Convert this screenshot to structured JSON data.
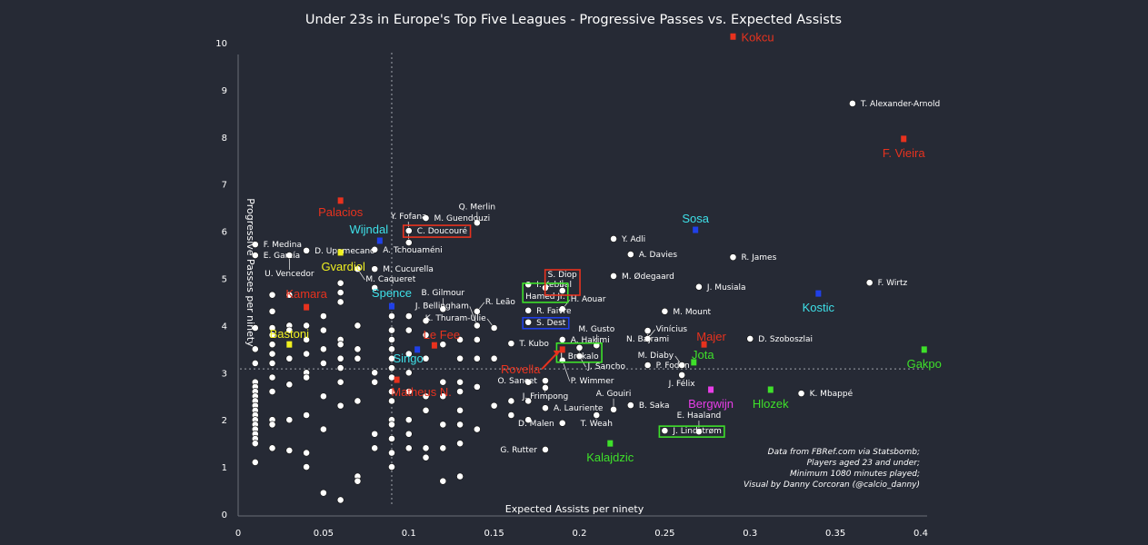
{
  "chart_data": {
    "type": "scatter",
    "title": "Under 23s in Europe's Top Five Leagues - Progressive Passes vs. Expected Assists",
    "xlabel": "Expected Assists per ninety",
    "ylabel": "Progressive Passes per ninety",
    "xlim": [
      0,
      0.4
    ],
    "ylim": [
      0,
      10
    ],
    "xticks": [
      "0",
      "0.05",
      "0.1",
      "0.15",
      "0.2",
      "0.25",
      "0.3",
      "0.35",
      "0.4"
    ],
    "yticks": [
      "0",
      "1",
      "2",
      "3",
      "4",
      "5",
      "6",
      "7",
      "8",
      "9",
      "10"
    ],
    "grid": false,
    "reference_lines": {
      "x": 0.09,
      "y": 3.08
    },
    "point_color": "#ffffff",
    "named_players": [
      {
        "name": "T. Alexander-Arnold",
        "x": 0.36,
        "y": 8.71
      },
      {
        "name": "F. Medina",
        "x": 0.01,
        "y": 5.72
      },
      {
        "name": "E. García",
        "x": 0.01,
        "y": 5.49
      },
      {
        "name": "U. Vencedor",
        "x": 0.03,
        "y": 5.49
      },
      {
        "name": "D. Upamecano",
        "x": 0.04,
        "y": 5.59
      },
      {
        "name": "A. Tchouaméni",
        "x": 0.08,
        "y": 5.61
      },
      {
        "name": "M. Caqueret",
        "x": 0.07,
        "y": 5.2
      },
      {
        "name": "M. Cucurella",
        "x": 0.08,
        "y": 5.2
      },
      {
        "name": "M. Guendouzi",
        "x": 0.11,
        "y": 6.28
      },
      {
        "name": "C. Doucouré",
        "x": 0.1,
        "y": 6.01,
        "box": "#e8321e"
      },
      {
        "name": "Y. Fofana",
        "x": 0.1,
        "y": 5.76
      },
      {
        "name": "Q. Merlin",
        "x": 0.14,
        "y": 6.18
      },
      {
        "name": "Y. Adli",
        "x": 0.22,
        "y": 5.84
      },
      {
        "name": "A. Davies",
        "x": 0.23,
        "y": 5.51
      },
      {
        "name": "R. James",
        "x": 0.29,
        "y": 5.45
      },
      {
        "name": "F. Wirtz",
        "x": 0.37,
        "y": 4.91
      },
      {
        "name": "M. Ødegaard",
        "x": 0.22,
        "y": 5.05
      },
      {
        "name": "J. Musiala",
        "x": 0.27,
        "y": 4.82
      },
      {
        "name": "I. Kebbal",
        "x": 0.17,
        "y": 4.87
      },
      {
        "name": "Hamed Jr.",
        "x": 0.18,
        "y": 4.8,
        "box": "#3ee02a"
      },
      {
        "name": "S. Diop",
        "x": 0.19,
        "y": 4.74,
        "box": "#e8321e"
      },
      {
        "name": "R. Faivre",
        "x": 0.17,
        "y": 4.32
      },
      {
        "name": "H. Aouar",
        "x": 0.19,
        "y": 4.35
      },
      {
        "name": "S. Dest",
        "x": 0.17,
        "y": 4.07,
        "box": "#2040e8"
      },
      {
        "name": "A. Hakimi",
        "x": 0.19,
        "y": 3.7
      },
      {
        "name": "M. Mount",
        "x": 0.25,
        "y": 4.3
      },
      {
        "name": "N. Bajrami",
        "x": 0.24,
        "y": 3.89
      },
      {
        "name": "Vinícius",
        "x": 0.24,
        "y": 3.72
      },
      {
        "name": "J. Brekalo",
        "x": 0.2,
        "y": 3.53,
        "box": "#3ee02a"
      },
      {
        "name": "M. Gusto",
        "x": 0.21,
        "y": 3.58
      },
      {
        "name": "J. Sancho",
        "x": 0.2,
        "y": 3.35
      },
      {
        "name": "T. Kubo",
        "x": 0.16,
        "y": 3.62
      },
      {
        "name": "K. Thuram-Ulie",
        "x": 0.15,
        "y": 3.95
      },
      {
        "name": "J. Bellingham",
        "x": 0.14,
        "y": 4.0
      },
      {
        "name": "R. Leão",
        "x": 0.14,
        "y": 4.3
      },
      {
        "name": "B. Gilmour",
        "x": 0.12,
        "y": 4.35
      },
      {
        "name": "D. Szoboszlai",
        "x": 0.3,
        "y": 3.72
      },
      {
        "name": "P. Foden",
        "x": 0.24,
        "y": 3.16
      },
      {
        "name": "M. Diaby",
        "x": 0.26,
        "y": 3.16
      },
      {
        "name": "J. Félix",
        "x": 0.26,
        "y": 2.95
      },
      {
        "name": "K. Mbappé",
        "x": 0.33,
        "y": 2.56
      },
      {
        "name": "P. Wimmer",
        "x": 0.19,
        "y": 3.26
      },
      {
        "name": "O. Sancet",
        "x": 0.18,
        "y": 2.83
      },
      {
        "name": "J. Frimpong",
        "x": 0.18,
        "y": 2.68
      },
      {
        "name": "A. Lauriente",
        "x": 0.18,
        "y": 2.25
      },
      {
        "name": "B. Saka",
        "x": 0.23,
        "y": 2.31
      },
      {
        "name": "A. Gouiri",
        "x": 0.22,
        "y": 2.22
      },
      {
        "name": "T. Weah",
        "x": 0.21,
        "y": 2.1
      },
      {
        "name": "D. Malen",
        "x": 0.19,
        "y": 1.93
      },
      {
        "name": "G. Rutter",
        "x": 0.18,
        "y": 1.37
      },
      {
        "name": "J. Lindstrøm",
        "x": 0.25,
        "y": 1.77,
        "box": "#3ee02a"
      },
      {
        "name": "E. Haaland",
        "x": 0.27,
        "y": 1.75
      }
    ],
    "highlighted_players": [
      {
        "name": "Kokcu",
        "x": 0.29,
        "y": 10.13,
        "color": "#e8321e"
      },
      {
        "name": "F. Vieira",
        "x": 0.39,
        "y": 7.96,
        "color": "#e8321e"
      },
      {
        "name": "Palacios",
        "x": 0.06,
        "y": 6.65,
        "color": "#e8321e"
      },
      {
        "name": "Wijndal",
        "x": 0.083,
        "y": 5.8,
        "color": "#2040e8",
        "label_color": "#3ee0e8"
      },
      {
        "name": "Gvardiol",
        "x": 0.06,
        "y": 5.55,
        "color": "#f0f020"
      },
      {
        "name": "Kamara",
        "x": 0.04,
        "y": 4.39,
        "color": "#e8321e"
      },
      {
        "name": "Spence",
        "x": 0.09,
        "y": 4.41,
        "color": "#2040e8",
        "label_color": "#3ee0e8"
      },
      {
        "name": "Bastoni",
        "x": 0.03,
        "y": 3.6,
        "color": "#f0f020"
      },
      {
        "name": "Le Fee",
        "x": 0.115,
        "y": 3.58,
        "color": "#e8321e"
      },
      {
        "name": "Singo",
        "x": 0.105,
        "y": 3.49,
        "color": "#2040e8",
        "label_color": "#3ee0e8"
      },
      {
        "name": "Matheus N.",
        "x": 0.093,
        "y": 2.85,
        "color": "#e8321e"
      },
      {
        "name": "Rovella",
        "x": 0.19,
        "y": 3.49,
        "color": "#e8321e"
      },
      {
        "name": "Sosa",
        "x": 0.268,
        "y": 6.03,
        "color": "#2040e8",
        "label_color": "#3ee0e8"
      },
      {
        "name": "Kostic",
        "x": 0.34,
        "y": 4.68,
        "color": "#2040e8",
        "label_color": "#3ee0e8"
      },
      {
        "name": "Majer",
        "x": 0.273,
        "y": 3.6,
        "color": "#e8321e"
      },
      {
        "name": "Jota",
        "x": 0.267,
        "y": 3.22,
        "color": "#3ee02a"
      },
      {
        "name": "Gakpo",
        "x": 0.402,
        "y": 3.49,
        "color": "#3ee02a"
      },
      {
        "name": "Bergwijn",
        "x": 0.277,
        "y": 2.64,
        "color": "#e83ee8"
      },
      {
        "name": "Hlozek",
        "x": 0.312,
        "y": 2.64,
        "color": "#3ee02a"
      },
      {
        "name": "Kalajdzic",
        "x": 0.218,
        "y": 1.5,
        "color": "#3ee02a"
      }
    ],
    "other_players": [
      {
        "x": 0.01,
        "ys": [
          3.95,
          3.5,
          3.2,
          2.8,
          2.7,
          2.6,
          2.5,
          2.4,
          2.3,
          2.2,
          2.1,
          2.0,
          1.9,
          1.8,
          1.7,
          1.6,
          1.5,
          1.1
        ]
      },
      {
        "x": 0.02,
        "ys": [
          4.65,
          4.3,
          3.95,
          3.8,
          3.6,
          3.4,
          3.2,
          2.9,
          2.6,
          2.0,
          1.9,
          1.4
        ]
      },
      {
        "x": 0.03,
        "ys": [
          4.65,
          4.0,
          3.9,
          3.3,
          2.75,
          2.0,
          1.35
        ]
      },
      {
        "x": 0.04,
        "ys": [
          4.0,
          3.7,
          3.4,
          3.0,
          2.9,
          2.1,
          1.3,
          1.0
        ]
      },
      {
        "x": 0.05,
        "ys": [
          4.2,
          3.9,
          3.5,
          3.2,
          2.5,
          1.8,
          0.45
        ]
      },
      {
        "x": 0.06,
        "ys": [
          4.9,
          4.7,
          4.5,
          3.7,
          3.6,
          3.3,
          3.1,
          2.8,
          2.3,
          0.3
        ]
      },
      {
        "x": 0.07,
        "ys": [
          4.0,
          3.5,
          3.3,
          2.4,
          0.8,
          0.7
        ]
      },
      {
        "x": 0.08,
        "ys": [
          4.8,
          3.0,
          2.8,
          1.7,
          1.4
        ]
      },
      {
        "x": 0.09,
        "ys": [
          4.2,
          3.9,
          3.7,
          3.5,
          3.3,
          3.1,
          2.9,
          2.6,
          2.4,
          2.0,
          1.9,
          1.6,
          1.3,
          1.0
        ]
      },
      {
        "x": 0.1,
        "ys": [
          4.2,
          3.9,
          3.4,
          3.0,
          2.6,
          2.0,
          1.7,
          1.4
        ]
      },
      {
        "x": 0.11,
        "ys": [
          4.1,
          3.8,
          3.3,
          2.5,
          2.2,
          1.4,
          1.2
        ]
      },
      {
        "x": 0.12,
        "ys": [
          3.6,
          2.8,
          2.5,
          1.9,
          1.4,
          0.7
        ]
      },
      {
        "x": 0.13,
        "ys": [
          3.7,
          3.3,
          2.8,
          2.6,
          2.2,
          1.9,
          1.5,
          0.8
        ]
      },
      {
        "x": 0.14,
        "ys": [
          3.7,
          3.3,
          2.7,
          1.8
        ]
      },
      {
        "x": 0.15,
        "ys": [
          3.3,
          2.3
        ]
      },
      {
        "x": 0.16,
        "ys": [
          2.4,
          2.1
        ]
      },
      {
        "x": 0.17,
        "ys": [
          2.8,
          2.4,
          2.0
        ]
      }
    ],
    "notes": [
      "Data from FBRef.com via Statsbomb;",
      "Players aged 23 and under;",
      "Minimum 1080 minutes played;",
      "Visual by Danny Corcoran (@calcio_danny)"
    ]
  }
}
